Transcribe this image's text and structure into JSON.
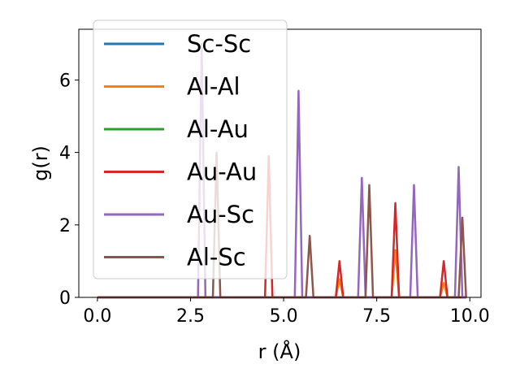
{
  "chart_data": {
    "type": "line",
    "xlabel": "r (Å)",
    "ylabel": "g(r)",
    "xlim": [
      -0.5,
      10.3
    ],
    "ylim": [
      0,
      7.4
    ],
    "xticks": [
      "0.0",
      "2.5",
      "5.0",
      "7.5",
      "10.0"
    ],
    "yticks": [
      "0",
      "2",
      "4",
      "6"
    ],
    "grid": false,
    "legend_position": "upper-left",
    "series": [
      {
        "name": "Sc-Sc",
        "color": "#1f77b4",
        "peaks": []
      },
      {
        "name": "Al-Al",
        "color": "#ff7f0e",
        "peaks": [
          {
            "x": 6.5,
            "y": 0.5
          },
          {
            "x": 8.0,
            "y": 1.3
          },
          {
            "x": 9.3,
            "y": 0.4
          }
        ]
      },
      {
        "name": "Al-Au",
        "color": "#2ca02c",
        "peaks": []
      },
      {
        "name": "Au-Au",
        "color": "#d62728",
        "peaks": [
          {
            "x": 4.6,
            "y": 3.9
          },
          {
            "x": 6.5,
            "y": 1.0
          },
          {
            "x": 8.0,
            "y": 2.6
          },
          {
            "x": 9.3,
            "y": 1.0
          }
        ]
      },
      {
        "name": "Au-Sc",
        "color": "#9467bd",
        "peaks": [
          {
            "x": 2.8,
            "y": 7.0
          },
          {
            "x": 5.4,
            "y": 5.7
          },
          {
            "x": 7.1,
            "y": 3.3
          },
          {
            "x": 8.5,
            "y": 3.1
          },
          {
            "x": 9.7,
            "y": 3.6
          }
        ]
      },
      {
        "name": "Al-Sc",
        "color": "#8c564b",
        "peaks": [
          {
            "x": 3.2,
            "y": 4.0
          },
          {
            "x": 5.7,
            "y": 1.7
          },
          {
            "x": 7.3,
            "y": 3.1
          },
          {
            "x": 9.8,
            "y": 2.2
          }
        ]
      }
    ]
  }
}
